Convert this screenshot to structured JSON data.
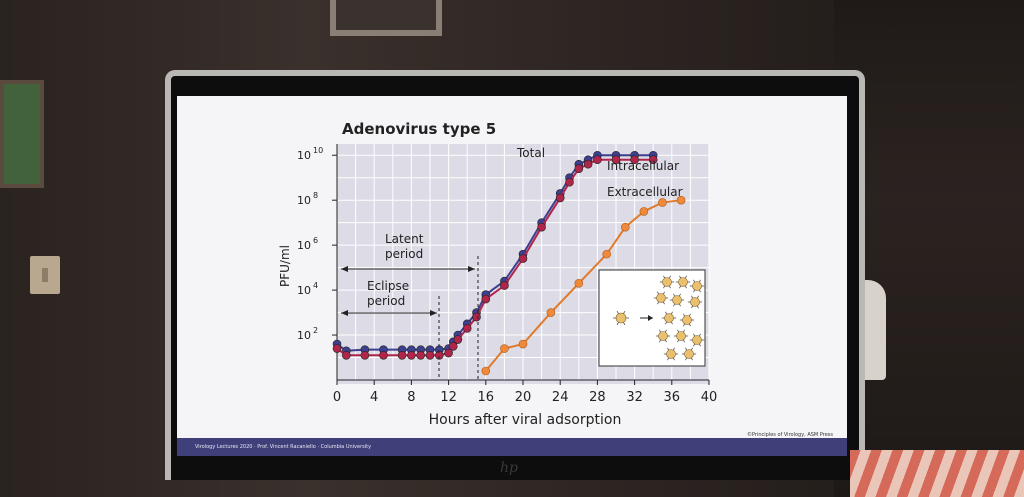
{
  "slide": {
    "title": "Adenovirus type 5",
    "ylabel": "PFU/ml",
    "xlabel": "Hours after viral adsorption",
    "y_ticks": [
      {
        "base": "10",
        "exp": "10"
      },
      {
        "base": "10",
        "exp": "8"
      },
      {
        "base": "10",
        "exp": "6"
      },
      {
        "base": "10",
        "exp": "4"
      },
      {
        "base": "10",
        "exp": "2"
      }
    ],
    "x_ticks": [
      "0",
      "4",
      "8",
      "12",
      "16",
      "20",
      "24",
      "28",
      "32",
      "36",
      "40"
    ],
    "label_total": "Total",
    "label_intracellular": "Intracellular",
    "label_extracellular": "Extracellular",
    "latent_line1": "Latent",
    "latent_line2": "period",
    "eclipse_line1": "Eclipse",
    "eclipse_line2": "period",
    "footer_left": "Virology Lectures 2020 · Prof. Vincent Racaniello · Columbia University",
    "footer_right": "©Principles of Virology, ASM Press"
  },
  "chart_data": {
    "type": "line",
    "title": "Adenovirus type 5",
    "xlabel": "Hours after viral adsorption",
    "ylabel": "PFU/ml",
    "xlim": [
      0,
      40
    ],
    "ylim_log10": [
      0,
      10.5
    ],
    "y_scale": "log",
    "series": [
      {
        "name": "Total",
        "color": "#3d3f8f",
        "x": [
          0,
          1,
          3,
          5,
          7,
          8,
          9,
          10,
          11,
          12,
          12.5,
          13,
          14,
          15,
          16,
          18,
          20,
          22,
          24,
          25,
          26,
          27,
          28,
          30,
          32,
          34
        ],
        "y_log10": [
          1.6,
          1.3,
          1.35,
          1.35,
          1.35,
          1.35,
          1.35,
          1.35,
          1.35,
          1.4,
          1.7,
          2.0,
          2.5,
          3.0,
          3.8,
          4.4,
          5.6,
          7.0,
          8.3,
          9.0,
          9.6,
          9.8,
          10.0,
          10.0,
          10.0,
          10.0
        ]
      },
      {
        "name": "Intracellular",
        "color": "#b0264a",
        "x": [
          0,
          1,
          3,
          5,
          7,
          8,
          9,
          10,
          11,
          12,
          12.5,
          13,
          14,
          15,
          16,
          18,
          20,
          22,
          24,
          25,
          26,
          27,
          28,
          30,
          32,
          34
        ],
        "y_log10": [
          1.4,
          1.1,
          1.1,
          1.1,
          1.1,
          1.1,
          1.1,
          1.1,
          1.1,
          1.2,
          1.5,
          1.8,
          2.3,
          2.8,
          3.6,
          4.2,
          5.4,
          6.8,
          8.1,
          8.8,
          9.4,
          9.6,
          9.8,
          9.8,
          9.8,
          9.8
        ]
      },
      {
        "name": "Extracellular",
        "color": "#e07a2a",
        "x": [
          16,
          18,
          20,
          23,
          26,
          29,
          31,
          33,
          35,
          37
        ],
        "y_log10": [
          0.4,
          1.4,
          1.6,
          3.0,
          4.3,
          5.6,
          6.8,
          7.5,
          7.9,
          8.0
        ]
      }
    ],
    "annotations": [
      "Latent period",
      "Eclipse period"
    ],
    "grid": true
  }
}
